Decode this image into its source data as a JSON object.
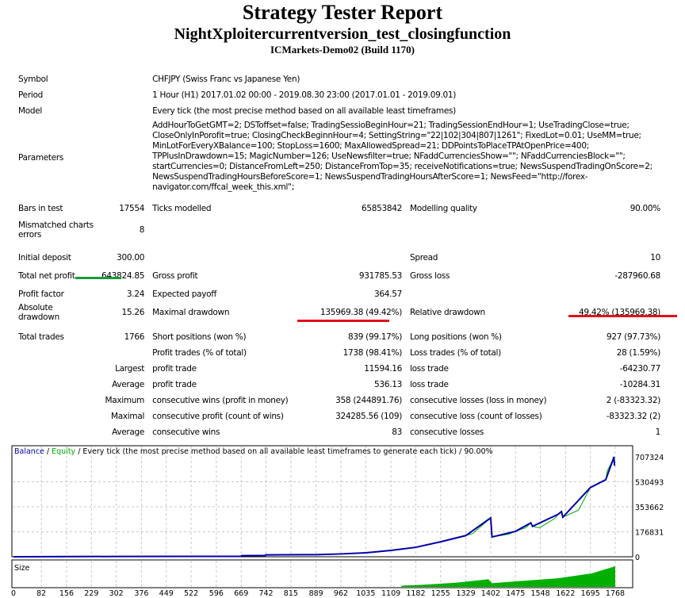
{
  "header": {
    "title": "Strategy Tester Report",
    "expert": "NightXploitercurrentversion_test_closingfunction",
    "server": "ICMarkets-Demo02 (Build 1170)"
  },
  "info": {
    "symbol_label": "Symbol",
    "symbol": "CHFJPY (Swiss Franc vs Japanese Yen)",
    "period_label": "Period",
    "period": "1 Hour (H1) 2017.01.02 00:00 - 2019.08.30 23:00 (2017.01.01 - 2019.09.01)",
    "model_label": "Model",
    "model": "Every tick (the most precise method based on all available least timeframes)",
    "parameters_label": "Parameters",
    "parameters": "AddHourToGetGMT=2; DSToffset=false; TradingSessioBeginHour=21; TradingSessionEndHour=1; UseTradingClose=true; CloseOnlyInPorofit=true; ClosingCheckBeginnHour=4; SettingString=\"22|102|304|807|1261\"; FixedLot=0.01; UseMM=true; MinLotForEveryXBalance=100; StopLoss=1600; MaxAllowedSpread=21; DDPointsToPlaceTPAtOpenPrice=400; TPPlusInDrawdown=15; MagicNumber=126; UseNewsfilter=true; NFaddCurrenciesShow=\"\"; NFaddCurrenciesBlock=\"\"; startCurrencies=0; DistanceFromLeft=250; DistanceFromTop=35; receiveNotifications=true; NewsSuspendTradingOnScore=2; NewsSuspendTradingHoursBeforeScore=1; NewsSuspendTradingHoursAfterScore=1; NewsFeed=\"http://forex-navigator.com/ffcal_week_this.xml\";"
  },
  "stats": {
    "bars_label": "Bars in test",
    "bars": "17554",
    "ticks_label": "Ticks modelled",
    "ticks": "65853842",
    "quality_label": "Modelling quality",
    "quality": "90.00%",
    "mismatch_label": "Mismatched charts errors",
    "mismatch": "8",
    "deposit_label": "Initial deposit",
    "deposit": "300.00",
    "spread_label": "Spread",
    "spread": "10",
    "net_label": "Total net profit",
    "net": "643824.85",
    "gross_profit_label": "Gross profit",
    "gross_profit": "931785.53",
    "gross_loss_label": "Gross loss",
    "gross_loss": "-287960.68",
    "pf_label": "Profit factor",
    "pf": "3.24",
    "payoff_label": "Expected payoff",
    "payoff": "364.57",
    "abs_dd_label": "Absolute drawdown",
    "abs_dd": "15.26",
    "max_dd_label": "Maximal drawdown",
    "max_dd": "135969.38 (49.42%)",
    "rel_dd_label": "Relative drawdown",
    "rel_dd": "49.42% (135969.38)",
    "trades_label": "Total trades",
    "trades": "1766",
    "short_label": "Short positions (won %)",
    "short": "839 (99.17%)",
    "long_label": "Long positions (won %)",
    "long": "927 (97.73%)",
    "profit_trades_label": "Profit trades (% of total)",
    "profit_trades": "1738 (98.41%)",
    "loss_trades_label": "Loss trades (% of total)",
    "loss_trades": "28 (1.59%)",
    "largest_label": "Largest",
    "largest_profit_label": "profit trade",
    "largest_profit": "11594.16",
    "largest_loss_label": "loss trade",
    "largest_loss": "-64230.77",
    "average_label": "Average",
    "avg_profit_label": "profit trade",
    "avg_profit": "536.13",
    "avg_loss_label": "loss trade",
    "avg_loss": "-10284.31",
    "maximum_label": "Maximum",
    "max_wins_label": "consecutive wins (profit in money)",
    "max_wins": "358 (244891.76)",
    "max_losses_label": "consecutive losses (loss in money)",
    "max_losses": "2 (-83323.32)",
    "maximal_label": "Maximal",
    "maxl_profit_label": "consecutive profit (count of wins)",
    "maxl_profit": "324285.56 (109)",
    "maxl_loss_label": "consecutive loss (count of losses)",
    "maxl_loss": "-83323.32 (2)",
    "average2_label": "Average",
    "avg_wins_label": "consecutive wins",
    "avg_wins": "83",
    "avg_losses_label": "consecutive losses",
    "avg_losses": "1"
  },
  "colors": {
    "balance": "#0000a8",
    "equity": "#00a800",
    "size": "#00b000",
    "underline_green": "#1a9a3a",
    "underline_red": "#e0101a"
  },
  "chart_data": {
    "type": "line",
    "legend": {
      "balance": "Balance",
      "sep1": " / ",
      "equity": "Equity",
      "rest": " / Every tick (the most precise method based on all available least timeframes to generate each tick) / 90.00%"
    },
    "size_label": "Size",
    "x_ticks": [
      0,
      82,
      156,
      229,
      302,
      376,
      449,
      522,
      596,
      669,
      742,
      815,
      889,
      962,
      1035,
      1109,
      1182,
      1255,
      1329,
      1402,
      1475,
      1548,
      1622,
      1695,
      1768
    ],
    "y_ticks": [
      0,
      176831,
      353662,
      530493,
      707324
    ],
    "xlim": [
      0,
      1775
    ],
    "ylim": [
      0,
      707324
    ],
    "balance": [
      [
        0,
        300
      ],
      [
        300,
        2000
      ],
      [
        669,
        3000
      ],
      [
        670,
        8000
      ],
      [
        740,
        9000
      ],
      [
        741,
        13000
      ],
      [
        889,
        15000
      ],
      [
        962,
        20000
      ],
      [
        1035,
        28000
      ],
      [
        1109,
        45000
      ],
      [
        1182,
        67000
      ],
      [
        1255,
        106000
      ],
      [
        1329,
        150000
      ],
      [
        1402,
        275000
      ],
      [
        1406,
        140000
      ],
      [
        1475,
        180000
      ],
      [
        1520,
        240000
      ],
      [
        1525,
        215000
      ],
      [
        1600,
        300000
      ],
      [
        1610,
        320000
      ],
      [
        1614,
        280000
      ],
      [
        1695,
        490000
      ],
      [
        1740,
        545000
      ],
      [
        1762,
        690000
      ],
      [
        1764,
        707324
      ],
      [
        1766,
        644124
      ]
    ],
    "equity_dips": [
      [
        1290,
        130000
      ],
      [
        1350,
        165000
      ],
      [
        1455,
        160000
      ],
      [
        1505,
        205000
      ],
      [
        1545,
        205000
      ],
      [
        1590,
        270000
      ],
      [
        1660,
        330000
      ],
      [
        1745,
        610000
      ]
    ],
    "size": [
      [
        1140,
        0.06
      ],
      [
        1200,
        0.1
      ],
      [
        1300,
        0.2
      ],
      [
        1395,
        0.37
      ],
      [
        1406,
        0.18
      ],
      [
        1500,
        0.3
      ],
      [
        1600,
        0.42
      ],
      [
        1700,
        0.66
      ],
      [
        1768,
        1
      ]
    ]
  }
}
